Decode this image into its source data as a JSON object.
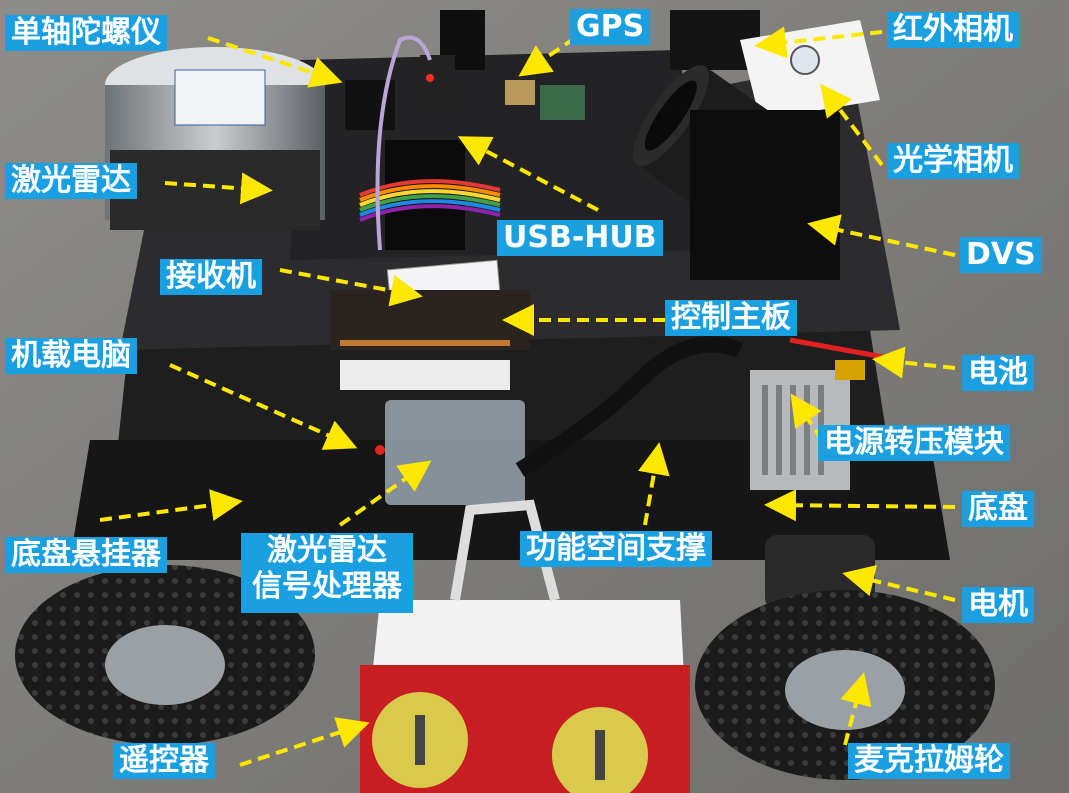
{
  "colors": {
    "label_bg": "#1a9fe0",
    "label_text": "#ffffff",
    "arrow": "#ffe800"
  },
  "labels": {
    "gyro": "单轴陀螺仪",
    "gps": "GPS",
    "ir_camera": "红外相机",
    "lidar": "激光雷达",
    "optical_camera": "光学相机",
    "usb_hub": "USB-HUB",
    "dvs": "DVS",
    "receiver": "接收机",
    "control_board": "控制主板",
    "onboard_computer": "机载电脑",
    "battery": "电池",
    "power_module": "电源转压模块",
    "chassis": "底盘",
    "suspension": "底盘悬挂器",
    "lidar_processor_line1": "激光雷达",
    "lidar_processor_line2": "信号处理器",
    "support": "功能空间支撑",
    "motor": "电机",
    "remote": "遥控器",
    "mecanum_wheel": "麦克拉姆轮"
  }
}
